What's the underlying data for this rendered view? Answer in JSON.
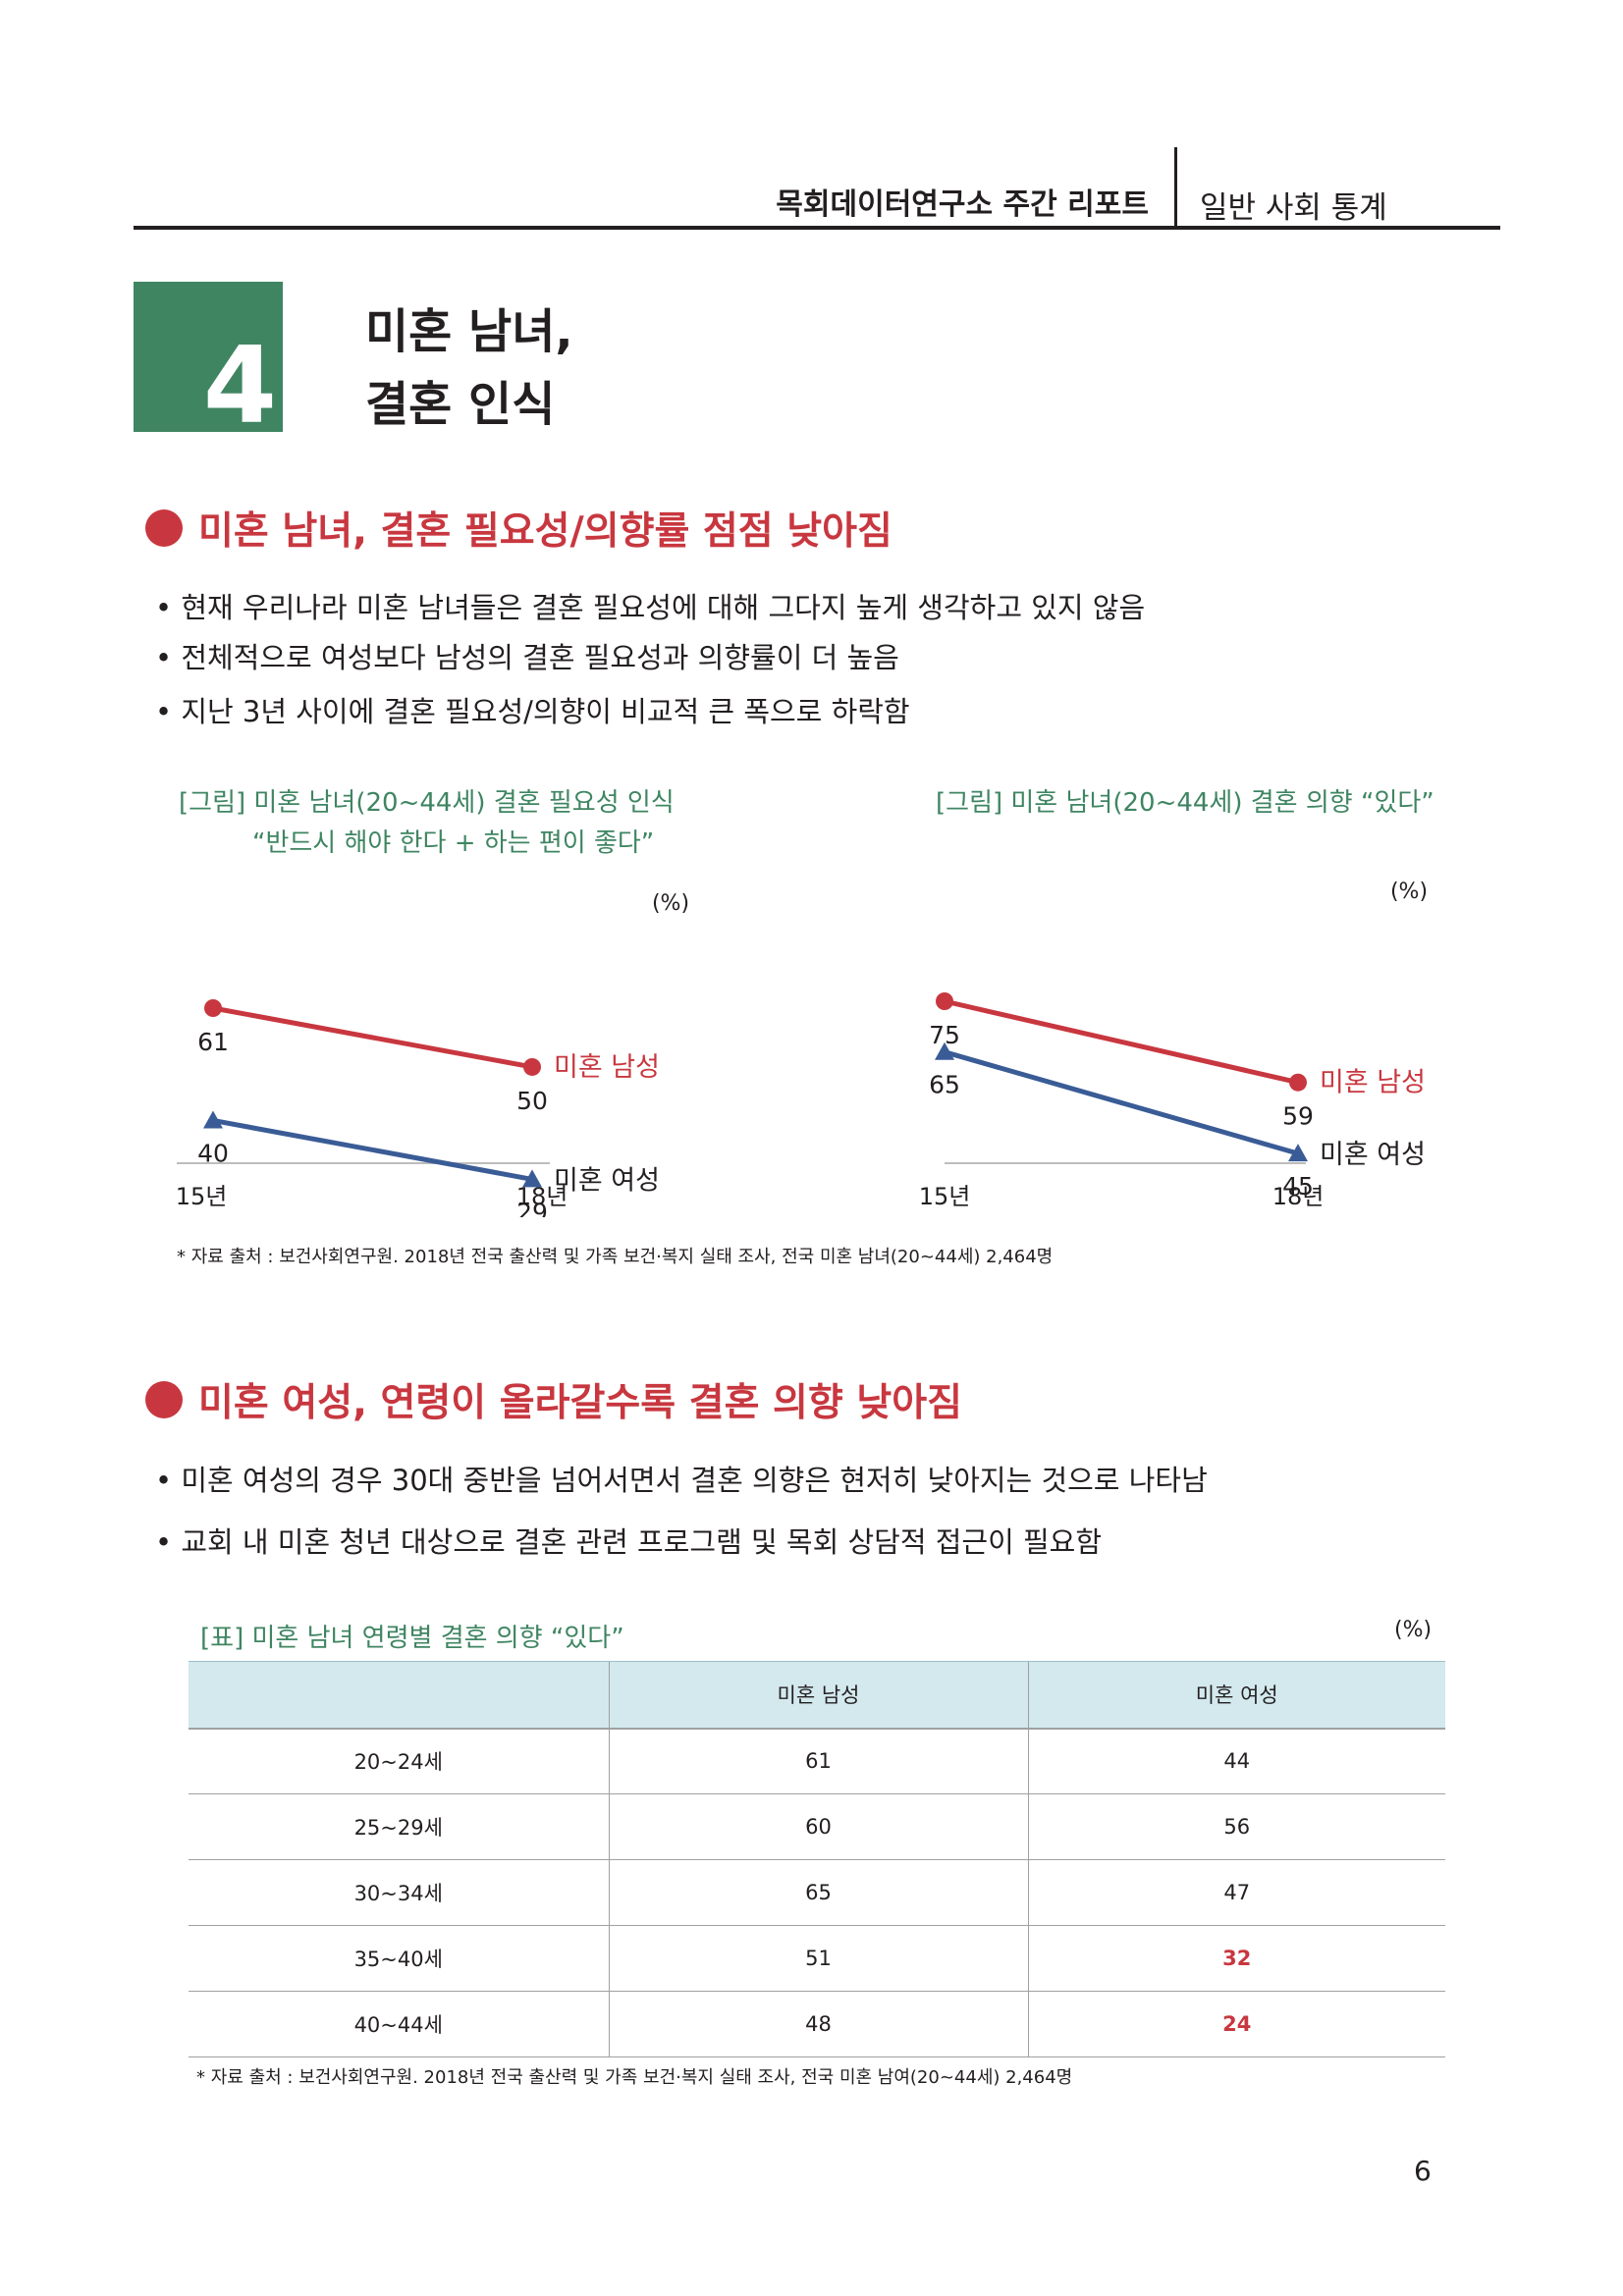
{
  "header": {
    "title": "목회데이터연구소 주간 리포트",
    "category": "일반 사회 통계"
  },
  "chapter": {
    "number": "4",
    "title_line1": "미혼 남녀,",
    "title_line2": "결혼 인식"
  },
  "section1": {
    "heading": "미혼 남녀, 결혼 필요성/의향률 점점 낮아짐",
    "bullets": [
      "• 현재 우리나라 미혼 남녀들은 결혼 필요성에 대해 그다지 높게 생각하고 있지 않음",
      "• 전체적으로 여성보다 남성의 결혼 필요성과 의향률이 더 높음",
      "• 지난 3년 사이에 결혼 필요성/의향이 비교적 큰 폭으로 하락함"
    ]
  },
  "chart_data": [
    {
      "type": "line",
      "caption_line1": "[그림] 미혼 남녀(20~44세) 결혼 필요성 인식",
      "caption_line2": "“반드시 해야 한다 + 하는 편이 좋다”",
      "unit": "(%)",
      "categories": [
        "15년",
        "18년"
      ],
      "series": [
        {
          "name": "미혼 남성",
          "values": [
            61,
            50
          ],
          "color": "#c8373f",
          "marker": "circle"
        },
        {
          "name": "미혼 여성",
          "values": [
            40,
            29
          ],
          "color": "#3a5c96",
          "marker": "triangle"
        }
      ]
    },
    {
      "type": "line",
      "caption_line1": "[그림] 미혼 남녀(20~44세) 결혼 의향 “있다”",
      "unit": "(%)",
      "categories": [
        "15년",
        "18년"
      ],
      "series": [
        {
          "name": "미혼 남성",
          "values": [
            75,
            59
          ],
          "color": "#c8373f",
          "marker": "circle"
        },
        {
          "name": "미혼 여성",
          "values": [
            65,
            45
          ],
          "color": "#3a5c96",
          "marker": "triangle"
        }
      ]
    }
  ],
  "source1": "* 자료 출처 :  보건사회연구원. 2018년 전국 출산력 및 가족 보건·복지 실태 조사, 전국 미혼 남녀(20~44세) 2,464명",
  "section2": {
    "heading": "미혼 여성, 연령이 올라갈수록 결혼 의향 낮아짐",
    "bullets": [
      "• 미혼 여성의 경우 30대 중반을 넘어서면서 결혼 의향은 현저히 낮아지는 것으로 나타남",
      "•  교회 내 미혼 청년 대상으로 결혼 관련 프로그램 및 목회 상담적 접근이 필요함"
    ]
  },
  "table": {
    "caption": "[표] 미혼 남녀 연령별 결혼 의향 “있다”",
    "unit": "(%)",
    "columns": [
      "",
      "미혼 남성",
      "미혼 여성"
    ],
    "rows": [
      {
        "age": "20~24세",
        "male": "61",
        "female": "44"
      },
      {
        "age": "25~29세",
        "male": "60",
        "female": "56"
      },
      {
        "age": "30~34세",
        "male": "65",
        "female": "47"
      },
      {
        "age": "35~40세",
        "male": "51",
        "female": "32"
      },
      {
        "age": "40~44세",
        "male": "48",
        "female": "24"
      }
    ],
    "highlight_color": "#c8373f"
  },
  "source2": "* 자료 출처 :  보건사회연구원. 2018년 전국 출산력 및 가족 보건·복지 실태 조사, 전국 미혼 남여(20~44세) 2,464명",
  "page_number": "6"
}
